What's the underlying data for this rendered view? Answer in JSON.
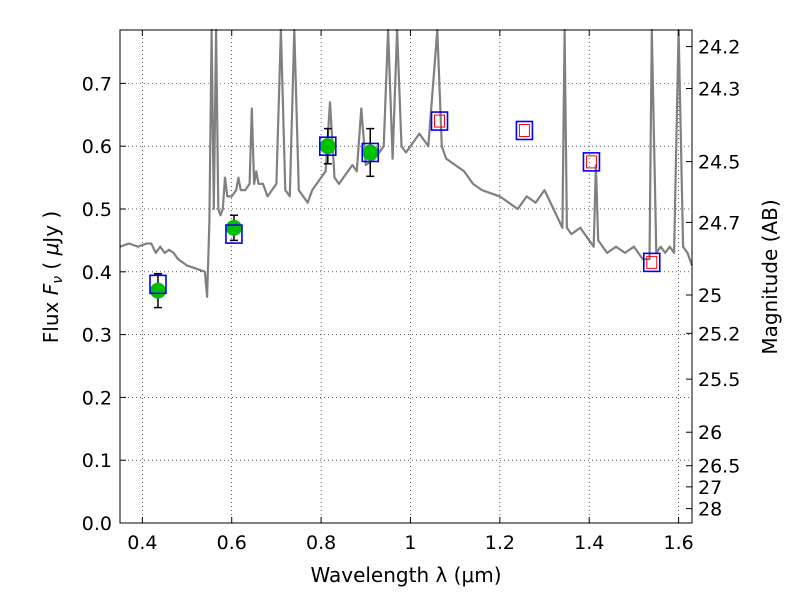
{
  "chart_data": {
    "type": "scatter",
    "xlabel": "Wavelength  λ (μm)",
    "ylabel": "Flux  F_ν  ( μJy )",
    "ylabel_parts": [
      "Flux  ",
      "F",
      "ν",
      "  ( ",
      "μ",
      "Jy )"
    ],
    "y2label": "Magnitude (AB)",
    "xlim": [
      0.35,
      1.63
    ],
    "ylim": [
      0.0,
      0.785
    ],
    "grid": true,
    "x_ticks": [
      0.4,
      0.6,
      0.8,
      1.0,
      1.2,
      1.4,
      1.6
    ],
    "x_tick_labels": [
      "0.4",
      "0.6",
      "0.8",
      "1",
      "1.2",
      "1.4",
      "1.6"
    ],
    "y_ticks": [
      0.0,
      0.1,
      0.2,
      0.3,
      0.4,
      0.5,
      0.6,
      0.7
    ],
    "y_tick_labels": [
      "0.0",
      "0.1",
      "0.2",
      "0.3",
      "0.4",
      "0.5",
      "0.6",
      "0.7"
    ],
    "mag_ticks": [
      {
        "label": "24.2",
        "mag": 24.2
      },
      {
        "label": "24.3",
        "mag": 24.3
      },
      {
        "label": "24.5",
        "mag": 24.5
      },
      {
        "label": "24.7",
        "mag": 24.7
      },
      {
        "label": "25",
        "mag": 25.0
      },
      {
        "label": "25.2",
        "mag": 25.2
      },
      {
        "label": "25.5",
        "mag": 25.5
      },
      {
        "label": "26",
        "mag": 26.0
      },
      {
        "label": "26.5",
        "mag": 26.5
      },
      {
        "label": "27",
        "mag": 27.0
      },
      {
        "label": "28",
        "mag": 28.0
      }
    ],
    "series": [
      {
        "kind": "line",
        "color": "#808080",
        "x": [
          0.35,
          0.37,
          0.39,
          0.41,
          0.42,
          0.43,
          0.44,
          0.45,
          0.46,
          0.47,
          0.48,
          0.5,
          0.52,
          0.54,
          0.545,
          0.55,
          0.555,
          0.56,
          0.565,
          0.57,
          0.575,
          0.58,
          0.585,
          0.59,
          0.6,
          0.61,
          0.615,
          0.62,
          0.63,
          0.64,
          0.645,
          0.65,
          0.655,
          0.66,
          0.67,
          0.68,
          0.7,
          0.71,
          0.72,
          0.73,
          0.74,
          0.75,
          0.76,
          0.77,
          0.78,
          0.8,
          0.81,
          0.82,
          0.83,
          0.84,
          0.85,
          0.86,
          0.87,
          0.88,
          0.89,
          0.9,
          0.92,
          0.94,
          0.95,
          0.96,
          0.97,
          0.98,
          0.99,
          1.0,
          1.02,
          1.04,
          1.06,
          1.07,
          1.08,
          1.1,
          1.12,
          1.14,
          1.16,
          1.18,
          1.2,
          1.22,
          1.24,
          1.26,
          1.28,
          1.3,
          1.32,
          1.34,
          1.345,
          1.35,
          1.36,
          1.38,
          1.4,
          1.41,
          1.415,
          1.42,
          1.44,
          1.46,
          1.48,
          1.5,
          1.52,
          1.535,
          1.54,
          1.55,
          1.56,
          1.57,
          1.58,
          1.59,
          1.6,
          1.61,
          1.62,
          1.63
        ],
        "y": [
          0.44,
          0.445,
          0.44,
          0.445,
          0.445,
          0.43,
          0.44,
          0.43,
          0.435,
          0.43,
          0.42,
          0.41,
          0.405,
          0.4,
          0.36,
          0.48,
          0.785,
          0.5,
          0.785,
          0.5,
          0.49,
          0.5,
          0.55,
          0.52,
          0.52,
          0.53,
          0.55,
          0.53,
          0.53,
          0.54,
          0.66,
          0.54,
          0.56,
          0.54,
          0.54,
          0.52,
          0.54,
          0.785,
          0.53,
          0.52,
          0.785,
          0.53,
          0.52,
          0.51,
          0.53,
          0.55,
          0.56,
          0.67,
          0.55,
          0.54,
          0.55,
          0.56,
          0.57,
          0.56,
          0.66,
          0.57,
          0.58,
          0.6,
          0.785,
          0.58,
          0.785,
          0.6,
          0.59,
          0.6,
          0.62,
          0.6,
          0.785,
          0.6,
          0.58,
          0.57,
          0.56,
          0.54,
          0.53,
          0.525,
          0.52,
          0.51,
          0.5,
          0.52,
          0.51,
          0.53,
          0.5,
          0.47,
          0.785,
          0.47,
          0.46,
          0.47,
          0.45,
          0.44,
          0.57,
          0.45,
          0.43,
          0.44,
          0.43,
          0.44,
          0.42,
          0.42,
          0.785,
          0.43,
          0.44,
          0.43,
          0.44,
          0.43,
          0.785,
          0.44,
          0.43,
          0.41
        ]
      },
      {
        "kind": "markers",
        "marker": "circle",
        "color": "#00c000",
        "x": [
          0.435,
          0.605,
          0.815,
          0.91
        ],
        "y": [
          0.37,
          0.47,
          0.6,
          0.59
        ],
        "yerr": [
          0.027,
          0.02,
          0.028,
          0.038
        ]
      },
      {
        "kind": "markers",
        "marker": "open-square",
        "color": "#0000ff",
        "x": [
          0.435,
          0.605,
          0.815,
          0.91,
          1.065,
          1.255,
          1.405,
          1.54
        ],
        "y": [
          0.38,
          0.46,
          0.6,
          0.59,
          0.64,
          0.625,
          0.575,
          0.415
        ]
      },
      {
        "kind": "markers",
        "marker": "open-square-small",
        "color": "#ff0000",
        "x": [
          1.065,
          1.255,
          1.405,
          1.54
        ],
        "y": [
          0.64,
          0.625,
          0.575,
          0.415
        ]
      }
    ]
  }
}
